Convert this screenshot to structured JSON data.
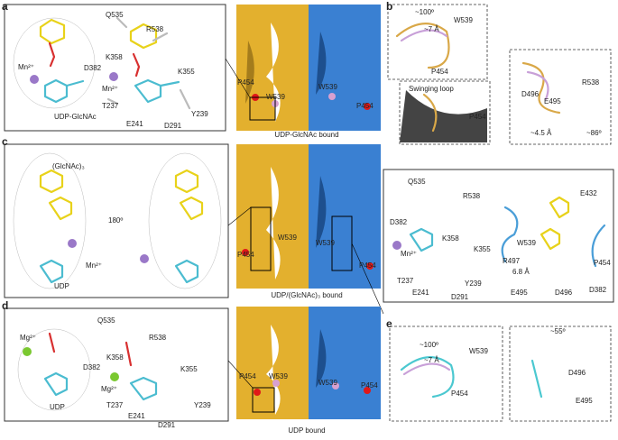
{
  "panels": [
    {
      "letter": "a",
      "texts": [
        "Mn²⁺",
        "UDP-GlcNAc",
        "Q535",
        "R538",
        "K358",
        "D382",
        "Mn²⁺",
        "K355",
        "T237",
        "Y239",
        "E241",
        "D291",
        "P454",
        "W539",
        "W539",
        "P454",
        "UDP-GlcNAc bound"
      ]
    },
    {
      "letter": "b",
      "texts": [
        "~100º",
        "~7 Å",
        "W539",
        "P454",
        "Swinging loop",
        "P454",
        "R538",
        "D496",
        "E495",
        "~4.5 Å",
        "~86º"
      ]
    },
    {
      "letter": "c",
      "texts": [
        "(GlcNAc)₃",
        "180º",
        "Mn²⁺",
        "UDP",
        "W539",
        "P454",
        "W539",
        "P454",
        "UDP/(GlcNAc)₃ bound",
        "Q535",
        "R538",
        "D382",
        "K358",
        "Mn²⁺",
        "K355",
        "T237",
        "E241",
        "D291",
        "Y239",
        "E432",
        "W539",
        "R497",
        "6.8 Å",
        "P454",
        "E495",
        "D496",
        "D382"
      ]
    },
    {
      "letter": "d",
      "texts": [
        "Mg²⁺",
        "UDP",
        "Q535",
        "R538",
        "D382",
        "K358",
        "Mg²⁺",
        "K355",
        "T237",
        "E241",
        "Y239",
        "D291",
        "P454",
        "W539",
        "W539",
        "P454",
        "UDP bound"
      ]
    },
    {
      "letter": "e",
      "texts": [
        "~100º",
        "W539",
        "~7 Å",
        "P454",
        "~55º",
        "D496",
        "E495"
      ]
    }
  ]
}
